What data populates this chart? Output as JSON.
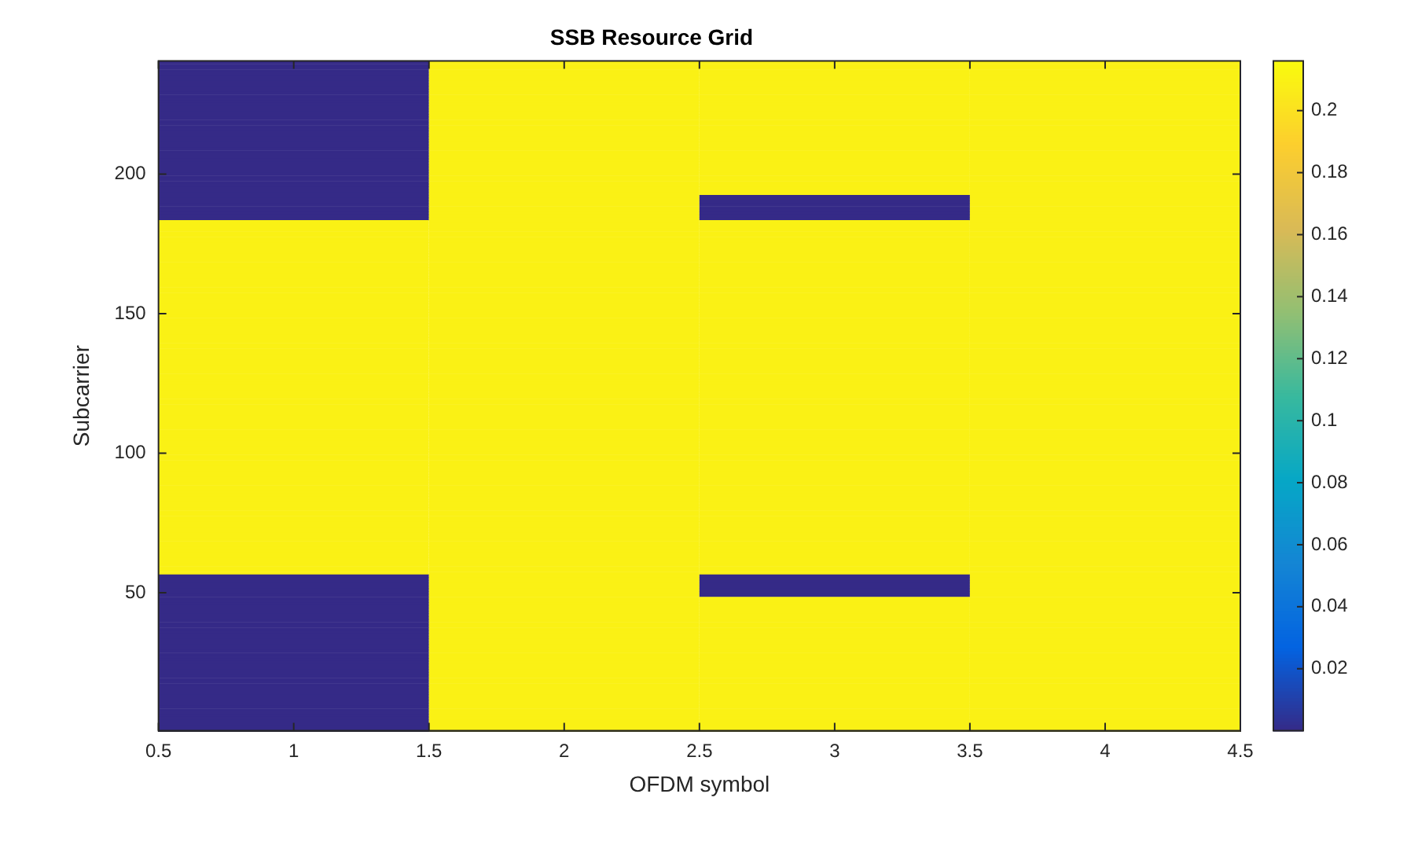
{
  "chart_data": {
    "type": "heatmap",
    "title": "SSB Resource Grid",
    "xlabel": "OFDM symbol",
    "ylabel": "Subcarrier",
    "x": [
      1,
      2,
      3,
      4
    ],
    "xlim": [
      0.5,
      4.5
    ],
    "xticks": [
      0.5,
      1,
      1.5,
      2,
      2.5,
      3,
      3.5,
      4,
      4.5
    ],
    "ylim": [
      0.5,
      240.5
    ],
    "yticks": [
      50,
      100,
      150,
      200
    ],
    "clim": [
      0,
      0.216
    ],
    "cticks": [
      0.02,
      0.04,
      0.06,
      0.08,
      0.1,
      0.12,
      0.14,
      0.16,
      0.18,
      0.2
    ],
    "grid": false,
    "cells": [
      [
        0,
        0.21,
        0.21,
        0.21
      ],
      [
        0,
        0.21,
        0.21,
        0.21
      ],
      [
        0,
        0.21,
        0.21,
        0.21
      ],
      [
        0,
        0.21,
        0.21,
        0.21
      ],
      [
        0,
        0.21,
        0.21,
        0.21
      ],
      [
        0,
        0.21,
        0.21,
        0.21
      ],
      [
        0,
        0.21,
        0.21,
        0.21
      ],
      [
        0,
        0.21,
        0.21,
        0.21
      ],
      [
        0,
        0.21,
        0.21,
        0.21
      ],
      [
        0,
        0.21,
        0.21,
        0.21
      ],
      [
        0,
        0.21,
        0.21,
        0.21
      ],
      [
        0,
        0.21,
        0.21,
        0.21
      ],
      [
        0,
        0.21,
        0.21,
        0.21
      ],
      [
        0,
        0.21,
        0.21,
        0.21
      ],
      [
        0,
        0.21,
        0.21,
        0.21
      ],
      [
        0,
        0.21,
        0.21,
        0.21
      ],
      [
        0,
        0.21,
        0.21,
        0.21
      ],
      [
        0,
        0.21,
        0.21,
        0.21
      ],
      [
        0,
        0.21,
        0.21,
        0.21
      ],
      [
        0,
        0.21,
        0.21,
        0.21
      ],
      [
        0,
        0.21,
        0.21,
        0.21
      ],
      [
        0,
        0.21,
        0.21,
        0.21
      ],
      [
        0,
        0.21,
        0.21,
        0.21
      ],
      [
        0,
        0.21,
        0.21,
        0.21
      ],
      [
        0,
        0.21,
        0.21,
        0.21
      ],
      [
        0,
        0.21,
        0.21,
        0.21
      ],
      [
        0,
        0.21,
        0.21,
        0.21
      ],
      [
        0,
        0.21,
        0.21,
        0.21
      ],
      [
        0,
        0.21,
        0.21,
        0.21
      ],
      [
        0,
        0.21,
        0.21,
        0.21
      ],
      [
        0,
        0.21,
        0.21,
        0.21
      ],
      [
        0,
        0.21,
        0.21,
        0.21
      ],
      [
        0,
        0.21,
        0.21,
        0.21
      ],
      [
        0,
        0.21,
        0.21,
        0.21
      ],
      [
        0,
        0.21,
        0.21,
        0.21
      ],
      [
        0,
        0.21,
        0.21,
        0.21
      ],
      [
        0,
        0.21,
        0.21,
        0.21
      ],
      [
        0,
        0.21,
        0.21,
        0.21
      ],
      [
        0,
        0.21,
        0.21,
        0.21
      ],
      [
        0,
        0.21,
        0.21,
        0.21
      ],
      [
        0,
        0.21,
        0.21,
        0.21
      ],
      [
        0,
        0.21,
        0.21,
        0.21
      ],
      [
        0,
        0.21,
        0.21,
        0.21
      ],
      [
        0,
        0.21,
        0.21,
        0.21
      ],
      [
        0,
        0.21,
        0.21,
        0.21
      ],
      [
        0,
        0.21,
        0.21,
        0.21
      ],
      [
        0,
        0.21,
        0.21,
        0.21
      ],
      [
        0,
        0.21,
        0.21,
        0.21
      ],
      [
        0,
        0.21,
        0,
        0.21
      ],
      [
        0,
        0.21,
        0,
        0.21
      ],
      [
        0,
        0.21,
        0,
        0.21
      ],
      [
        0,
        0.21,
        0,
        0.21
      ],
      [
        0,
        0.21,
        0,
        0.21
      ],
      [
        0,
        0.21,
        0,
        0.21
      ],
      [
        0,
        0.21,
        0,
        0.21
      ],
      [
        0,
        0.21,
        0,
        0.21
      ],
      [
        0,
        0.21,
        0,
        0.21
      ],
      [
        0.21,
        0.21,
        0.21,
        0.21
      ],
      [
        0.21,
        0.21,
        0.21,
        0.21
      ],
      [
        0.21,
        0.21,
        0.21,
        0.21
      ],
      [
        0.21,
        0.21,
        0.21,
        0.21
      ],
      [
        0.21,
        0.21,
        0.21,
        0.21
      ],
      [
        0.21,
        0.21,
        0.21,
        0.21
      ],
      [
        0.21,
        0.21,
        0.21,
        0.21
      ],
      [
        0.21,
        0.21,
        0.21,
        0.21
      ],
      [
        0.21,
        0.21,
        0.21,
        0.21
      ],
      [
        0.21,
        0.21,
        0.21,
        0.21
      ],
      [
        0.21,
        0.21,
        0.21,
        0.21
      ],
      [
        0.21,
        0.21,
        0.21,
        0.21
      ],
      [
        0.21,
        0.21,
        0.21,
        0.21
      ],
      [
        0.21,
        0.21,
        0.21,
        0.21
      ],
      [
        0.21,
        0.21,
        0.21,
        0.21
      ],
      [
        0.21,
        0.21,
        0.21,
        0.21
      ],
      [
        0.21,
        0.21,
        0.21,
        0.21
      ],
      [
        0.21,
        0.21,
        0.21,
        0.21
      ],
      [
        0.21,
        0.21,
        0.21,
        0.21
      ],
      [
        0.21,
        0.21,
        0.21,
        0.21
      ],
      [
        0.21,
        0.21,
        0.21,
        0.21
      ],
      [
        0.21,
        0.21,
        0.21,
        0.21
      ],
      [
        0.21,
        0.21,
        0.21,
        0.21
      ],
      [
        0.21,
        0.21,
        0.21,
        0.21
      ],
      [
        0.21,
        0.21,
        0.21,
        0.21
      ],
      [
        0.21,
        0.21,
        0.21,
        0.21
      ],
      [
        0.21,
        0.21,
        0.21,
        0.21
      ],
      [
        0.21,
        0.21,
        0.21,
        0.21
      ],
      [
        0.21,
        0.21,
        0.21,
        0.21
      ],
      [
        0.21,
        0.21,
        0.21,
        0.21
      ],
      [
        0.21,
        0.21,
        0.21,
        0.21
      ],
      [
        0.21,
        0.21,
        0.21,
        0.21
      ],
      [
        0.21,
        0.21,
        0.21,
        0.21
      ],
      [
        0.21,
        0.21,
        0.21,
        0.21
      ],
      [
        0.21,
        0.21,
        0.21,
        0.21
      ],
      [
        0.21,
        0.21,
        0.21,
        0.21
      ],
      [
        0.21,
        0.21,
        0.21,
        0.21
      ],
      [
        0.21,
        0.21,
        0.21,
        0.21
      ],
      [
        0.21,
        0.21,
        0.21,
        0.21
      ],
      [
        0.21,
        0.21,
        0.21,
        0.21
      ],
      [
        0.21,
        0.21,
        0.21,
        0.21
      ],
      [
        0.21,
        0.21,
        0.21,
        0.21
      ],
      [
        0.21,
        0.21,
        0.21,
        0.21
      ],
      [
        0.21,
        0.21,
        0.21,
        0.21
      ],
      [
        0.21,
        0.21,
        0.21,
        0.21
      ],
      [
        0.21,
        0.21,
        0.21,
        0.21
      ],
      [
        0.21,
        0.21,
        0.21,
        0.21
      ],
      [
        0.21,
        0.21,
        0.21,
        0.21
      ],
      [
        0.21,
        0.21,
        0.21,
        0.21
      ],
      [
        0.21,
        0.21,
        0.21,
        0.21
      ],
      [
        0.21,
        0.21,
        0.21,
        0.21
      ],
      [
        0.21,
        0.21,
        0.21,
        0.21
      ],
      [
        0.21,
        0.21,
        0.21,
        0.21
      ],
      [
        0.21,
        0.21,
        0.21,
        0.21
      ],
      [
        0.21,
        0.21,
        0.21,
        0.21
      ],
      [
        0.21,
        0.21,
        0.21,
        0.21
      ],
      [
        0.21,
        0.21,
        0.21,
        0.21
      ],
      [
        0.21,
        0.21,
        0.21,
        0.21
      ],
      [
        0.21,
        0.21,
        0.21,
        0.21
      ],
      [
        0.21,
        0.21,
        0.21,
        0.21
      ],
      [
        0.21,
        0.21,
        0.21,
        0.21
      ],
      [
        0.21,
        0.21,
        0.21,
        0.21
      ],
      [
        0.21,
        0.21,
        0.21,
        0.21
      ],
      [
        0.21,
        0.21,
        0.21,
        0.21
      ],
      [
        0.21,
        0.21,
        0.21,
        0.21
      ],
      [
        0.21,
        0.21,
        0.21,
        0.21
      ],
      [
        0.21,
        0.21,
        0.21,
        0.21
      ],
      [
        0.21,
        0.21,
        0.21,
        0.21
      ],
      [
        0.21,
        0.21,
        0.21,
        0.21
      ],
      [
        0.21,
        0.21,
        0.21,
        0.21
      ],
      [
        0.21,
        0.21,
        0.21,
        0.21
      ],
      [
        0.21,
        0.21,
        0.21,
        0.21
      ],
      [
        0.21,
        0.21,
        0.21,
        0.21
      ],
      [
        0.21,
        0.21,
        0.21,
        0.21
      ],
      [
        0.21,
        0.21,
        0.21,
        0.21
      ],
      [
        0.21,
        0.21,
        0.21,
        0.21
      ],
      [
        0.21,
        0.21,
        0.21,
        0.21
      ],
      [
        0.21,
        0.21,
        0.21,
        0.21
      ],
      [
        0.21,
        0.21,
        0.21,
        0.21
      ],
      [
        0.21,
        0.21,
        0.21,
        0.21
      ],
      [
        0.21,
        0.21,
        0.21,
        0.21
      ],
      [
        0.21,
        0.21,
        0.21,
        0.21
      ],
      [
        0.21,
        0.21,
        0.21,
        0.21
      ],
      [
        0.21,
        0.21,
        0.21,
        0.21
      ],
      [
        0.21,
        0.21,
        0.21,
        0.21
      ],
      [
        0.21,
        0.21,
        0.21,
        0.21
      ],
      [
        0.21,
        0.21,
        0.21,
        0.21
      ],
      [
        0.21,
        0.21,
        0.21,
        0.21
      ],
      [
        0.21,
        0.21,
        0.21,
        0.21
      ],
      [
        0.21,
        0.21,
        0.21,
        0.21
      ],
      [
        0.21,
        0.21,
        0.21,
        0.21
      ],
      [
        0.21,
        0.21,
        0.21,
        0.21
      ],
      [
        0.21,
        0.21,
        0.21,
        0.21
      ],
      [
        0.21,
        0.21,
        0.21,
        0.21
      ],
      [
        0.21,
        0.21,
        0.21,
        0.21
      ],
      [
        0.21,
        0.21,
        0.21,
        0.21
      ],
      [
        0.21,
        0.21,
        0.21,
        0.21
      ],
      [
        0.21,
        0.21,
        0.21,
        0.21
      ],
      [
        0.21,
        0.21,
        0.21,
        0.21
      ],
      [
        0.21,
        0.21,
        0.21,
        0.21
      ],
      [
        0.21,
        0.21,
        0.21,
        0.21
      ],
      [
        0.21,
        0.21,
        0.21,
        0.21
      ],
      [
        0.21,
        0.21,
        0.21,
        0.21
      ],
      [
        0.21,
        0.21,
        0.21,
        0.21
      ],
      [
        0.21,
        0.21,
        0.21,
        0.21
      ],
      [
        0.21,
        0.21,
        0.21,
        0.21
      ],
      [
        0.21,
        0.21,
        0.21,
        0.21
      ],
      [
        0.21,
        0.21,
        0.21,
        0.21
      ],
      [
        0.21,
        0.21,
        0.21,
        0.21
      ],
      [
        0.21,
        0.21,
        0.21,
        0.21
      ],
      [
        0.21,
        0.21,
        0.21,
        0.21
      ],
      [
        0.21,
        0.21,
        0.21,
        0.21
      ],
      [
        0.21,
        0.21,
        0.21,
        0.21
      ],
      [
        0.21,
        0.21,
        0.21,
        0.21
      ],
      [
        0.21,
        0.21,
        0.21,
        0.21
      ],
      [
        0.21,
        0.21,
        0.21,
        0.21
      ],
      [
        0.21,
        0.21,
        0.21,
        0.21
      ],
      [
        0.21,
        0.21,
        0.21,
        0.21
      ],
      [
        0.21,
        0.21,
        0.21,
        0.21
      ],
      [
        0.21,
        0.21,
        0.21,
        0.21
      ],
      [
        0.21,
        0.21,
        0.21,
        0.21
      ],
      [
        0.21,
        0.21,
        0.21,
        0.21
      ],
      [
        0.21,
        0.21,
        0.21,
        0.21
      ],
      [
        0.21,
        0.21,
        0.21,
        0.21
      ],
      [
        0.21,
        0.21,
        0.21,
        0.21
      ],
      [
        0.21,
        0.21,
        0.21,
        0.21
      ],
      [
        0.21,
        0.21,
        0.21,
        0.21
      ],
      [
        0,
        0.21,
        0,
        0.21
      ],
      [
        0,
        0.21,
        0,
        0.21
      ],
      [
        0,
        0.21,
        0,
        0.21
      ],
      [
        0,
        0.21,
        0,
        0.21
      ],
      [
        0,
        0.21,
        0,
        0.21
      ],
      [
        0,
        0.21,
        0,
        0.21
      ],
      [
        0,
        0.21,
        0,
        0.21
      ],
      [
        0,
        0.21,
        0,
        0.21
      ],
      [
        0,
        0.21,
        0.21,
        0.21
      ],
      [
        0,
        0.21,
        0.21,
        0.21
      ],
      [
        0,
        0.21,
        0.21,
        0.21
      ],
      [
        0,
        0.21,
        0.21,
        0.21
      ],
      [
        0,
        0.21,
        0.21,
        0.21
      ],
      [
        0,
        0.21,
        0.21,
        0.21
      ],
      [
        0,
        0.21,
        0.21,
        0.21
      ],
      [
        0,
        0.21,
        0.21,
        0.21
      ],
      [
        0,
        0.21,
        0.21,
        0.21
      ],
      [
        0,
        0.21,
        0.21,
        0.21
      ],
      [
        0,
        0.21,
        0.21,
        0.21
      ],
      [
        0,
        0.21,
        0.21,
        0.21
      ],
      [
        0,
        0.21,
        0.21,
        0.21
      ],
      [
        0,
        0.21,
        0.21,
        0.21
      ],
      [
        0,
        0.21,
        0.21,
        0.21
      ],
      [
        0,
        0.21,
        0.21,
        0.21
      ],
      [
        0,
        0.21,
        0.21,
        0.21
      ],
      [
        0,
        0.21,
        0.21,
        0.21
      ],
      [
        0,
        0.21,
        0.21,
        0.21
      ],
      [
        0,
        0.21,
        0.21,
        0.21
      ],
      [
        0,
        0.21,
        0.21,
        0.21
      ],
      [
        0,
        0.21,
        0.21,
        0.21
      ],
      [
        0,
        0.21,
        0.21,
        0.21
      ],
      [
        0,
        0.21,
        0.21,
        0.21
      ],
      [
        0,
        0.21,
        0.21,
        0.21
      ],
      [
        0,
        0.21,
        0.21,
        0.21
      ],
      [
        0,
        0.21,
        0.21,
        0.21
      ],
      [
        0,
        0.21,
        0.21,
        0.21
      ],
      [
        0,
        0.21,
        0.21,
        0.21
      ],
      [
        0,
        0.21,
        0.21,
        0.21
      ],
      [
        0,
        0.21,
        0.21,
        0.21
      ],
      [
        0,
        0.21,
        0.21,
        0.21
      ],
      [
        0,
        0.21,
        0.21,
        0.21
      ],
      [
        0,
        0.21,
        0.21,
        0.21
      ],
      [
        0,
        0.21,
        0.21,
        0.21
      ],
      [
        0,
        0.21,
        0.21,
        0.21
      ],
      [
        0,
        0.21,
        0.21,
        0.21
      ],
      [
        0,
        0.21,
        0.21,
        0.21
      ],
      [
        0,
        0.21,
        0.21,
        0.21
      ],
      [
        0,
        0.21,
        0.21,
        0.21
      ],
      [
        0,
        0.21,
        0.21,
        0.21
      ],
      [
        0,
        0.21,
        0.21,
        0.21
      ],
      [
        0,
        0.21,
        0.21,
        0.21
      ],
      [
        0,
        0.21,
        0.21,
        0.21
      ],
      [
        0,
        0.21,
        0.21,
        0.21
      ],
      [
        0,
        0.21,
        0.21,
        0.21
      ],
      [
        0,
        0.21,
        0.21,
        0.21
      ],
      [
        0,
        0.21,
        0.21,
        0.21
      ]
    ]
  }
}
